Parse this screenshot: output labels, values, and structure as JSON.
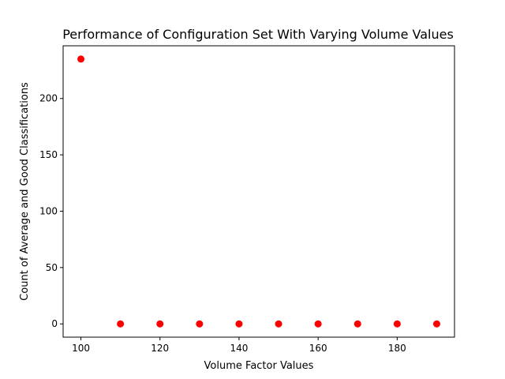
{
  "chart_data": {
    "type": "scatter",
    "title": "Performance of Configuration Set With Varying Volume Values",
    "xlabel": "Volume Factor Values",
    "ylabel": "Count of Average and Good Classifications",
    "xlim": [
      95.5,
      194.5
    ],
    "ylim": [
      -11.75,
      246.75
    ],
    "x_ticks": [
      100,
      120,
      140,
      160,
      180
    ],
    "y_ticks": [
      0,
      50,
      100,
      150,
      200
    ],
    "grid": false,
    "marker_color": "#ff0000",
    "series": [
      {
        "x": [
          100,
          110,
          120,
          130,
          140,
          150,
          160,
          170,
          180,
          190
        ],
        "y": [
          235,
          0,
          0,
          0,
          0,
          0,
          0,
          0,
          0,
          0
        ]
      }
    ]
  }
}
